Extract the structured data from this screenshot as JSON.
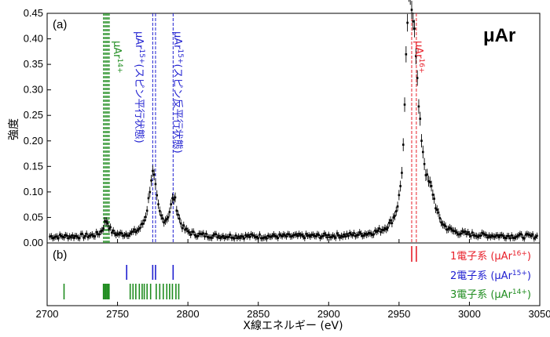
{
  "chart_data": {
    "type": "scatter",
    "big_label": "μAr",
    "panel_a_label": "(a)",
    "panel_b_label": "(b)",
    "xlabel": "X線エネルギー (eV)",
    "ylabel": "強度",
    "xlim": [
      2700,
      3050
    ],
    "ylim": [
      0,
      0.45
    ],
    "xticks": [
      "2700",
      "2750",
      "2800",
      "2850",
      "2900",
      "2950",
      "3000",
      "3050"
    ],
    "yticks": [
      "0.00",
      "0.05",
      "0.10",
      "0.15",
      "0.20",
      "0.25",
      "0.30",
      "0.35",
      "0.40",
      "0.45"
    ],
    "colors": {
      "ar16": "#e8202a",
      "ar15": "#1f1fd0",
      "ar14": "#1f8c1f",
      "data": "#000000"
    },
    "peaks": [
      {
        "x": 2742,
        "y": 0.03,
        "w": 2.5
      },
      {
        "x": 2775,
        "y": 0.12,
        "w": 3.5
      },
      {
        "x": 2790,
        "y": 0.07,
        "w": 3.5
      },
      {
        "x": 2956,
        "y": 0.22,
        "w": 2.5
      },
      {
        "x": 2958,
        "y": 0.18,
        "w": 3.0
      },
      {
        "x": 2961,
        "y": 0.25,
        "w": 3.0
      },
      {
        "x": 2966,
        "y": 0.08,
        "w": 4.0
      },
      {
        "x": 2973,
        "y": 0.05,
        "w": 4.0
      }
    ],
    "baseline": 0.012,
    "lines_ar16": [
      2959.0,
      2962.3
    ],
    "lines_ar15": [
      2756.5,
      2775.0,
      2777.0,
      2789.5
    ],
    "lines_ar14": [
      2712.0,
      2740.0,
      2740.8,
      2741.6,
      2742.4,
      2743.2,
      2744.0,
      2759.0,
      2761.0,
      2763.0,
      2765.5,
      2767.5,
      2769.0,
      2771.0,
      2773.5,
      2777.5,
      2780.0,
      2782.5,
      2785.0,
      2787.0,
      2789.0,
      2791.5,
      2793.5
    ],
    "dashed_ar14": [
      2740.0,
      2740.6,
      2741.2,
      2741.8,
      2742.4,
      2743.0,
      2743.6,
      2744.2
    ],
    "dashed_ar15": [
      2775.0,
      2777.0,
      2789.5
    ],
    "dashed_ar16": [
      2959.0,
      2962.3
    ],
    "annotations": {
      "ar14": "μAr14+",
      "ar15_parallel": "μAr15+ (スピン平行状態)",
      "ar15_antiparallel": "μAr15+ (スピン反平行状態)",
      "ar16": "μAr16+"
    },
    "legend": [
      {
        "text": "1電子系 (μAr16+)",
        "color": "#e8202a"
      },
      {
        "text": "2電子系 (μAr15+)",
        "color": "#1f1fd0"
      },
      {
        "text": "3電子系 (μAr14+)",
        "color": "#1f8c1f"
      }
    ]
  }
}
